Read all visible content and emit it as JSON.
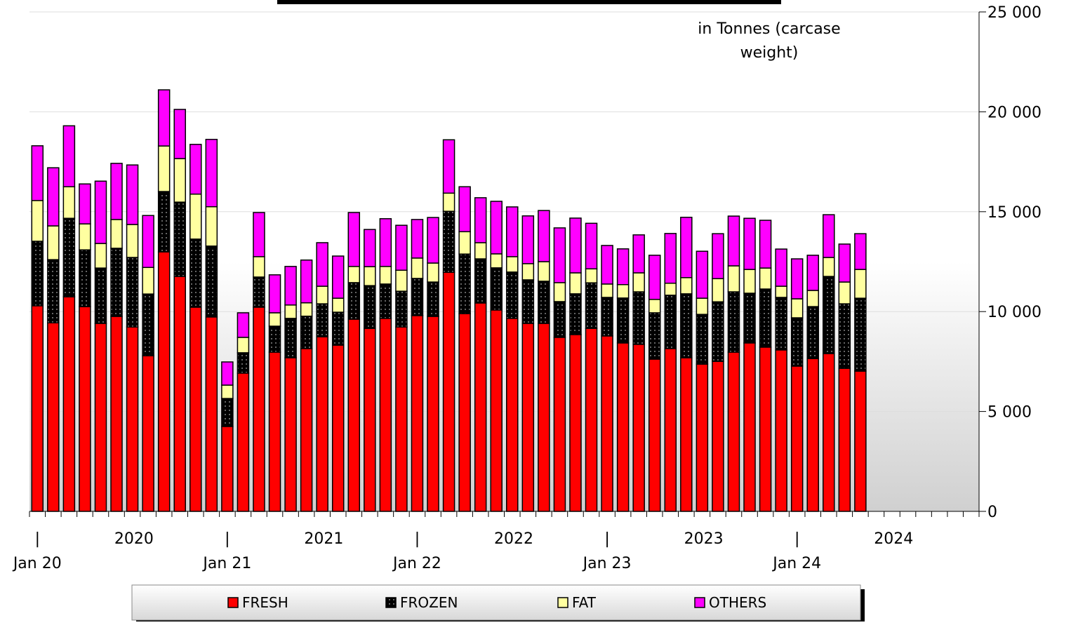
{
  "chart_data": {
    "type": "stacked-bar",
    "annotation": [
      "in Tonnes (carcase",
      "weight)"
    ],
    "categories": [
      "Jan 20",
      null,
      null,
      null,
      null,
      null,
      null,
      null,
      null,
      null,
      null,
      null,
      "Jan 21",
      null,
      null,
      null,
      null,
      null,
      null,
      null,
      null,
      null,
      null,
      null,
      "Jan 22",
      null,
      null,
      null,
      null,
      null,
      null,
      null,
      null,
      null,
      null,
      null,
      "Jan 23",
      null,
      null,
      null,
      null,
      null,
      null,
      null,
      null,
      null,
      null,
      null,
      "Jan 24",
      null,
      null,
      null,
      null
    ],
    "year_labels": [
      "2020",
      "2021",
      "2022",
      "2023",
      "2024"
    ],
    "series": [
      {
        "name": "FRESH",
        "color": "#ff0000",
        "values": [
          10290,
          9440,
          10740,
          10250,
          9410,
          9760,
          9230,
          7790,
          12990,
          11760,
          10220,
          9730,
          4250,
          6920,
          10220,
          7970,
          7690,
          8150,
          8740,
          8320,
          9620,
          9160,
          9660,
          9230,
          9800,
          9760,
          11970,
          9900,
          10430,
          10080,
          9660,
          9410,
          9410,
          8710,
          8850,
          9160,
          8780,
          8430,
          8360,
          7620,
          8150,
          7690,
          7370,
          7510,
          7970,
          8430,
          8220,
          8080,
          7270,
          7650,
          7900,
          7160,
          7020
        ]
      },
      {
        "name": "FROZEN",
        "color": "#000000",
        "values": [
          3230,
          3160,
          3930,
          2840,
          2770,
          3410,
          3480,
          3090,
          3020,
          3720,
          3410,
          3550,
          1400,
          1020,
          1510,
          1300,
          1970,
          1620,
          1650,
          1650,
          1830,
          2140,
          1720,
          1790,
          1860,
          1720,
          3050,
          2980,
          2210,
          2110,
          2320,
          2180,
          2110,
          1790,
          2040,
          2280,
          1930,
          2250,
          2630,
          2320,
          2670,
          3200,
          2490,
          2980,
          3020,
          2490,
          2910,
          2630,
          2420,
          2600,
          3860,
          3230,
          3650
        ]
      },
      {
        "name": "FAT",
        "color": "#ffffa0",
        "values": [
          2040,
          1690,
          1580,
          1300,
          1230,
          1440,
          1650,
          1330,
          2280,
          2180,
          2250,
          1970,
          670,
          770,
          1020,
          670,
          670,
          670,
          880,
          700,
          810,
          950,
          880,
          1050,
          1020,
          950,
          910,
          1120,
          810,
          700,
          770,
          810,
          980,
          950,
          1050,
          700,
          670,
          670,
          950,
          670,
          600,
          810,
          810,
          1160,
          1300,
          1190,
          1050,
          560,
          950,
          810,
          950,
          1090,
          1440
        ]
      },
      {
        "name": "OTHERS",
        "color": "#ff00ff",
        "values": [
          2740,
          2910,
          3050,
          2000,
          3120,
          2810,
          2980,
          2600,
          2810,
          2460,
          2490,
          3370,
          1160,
          1230,
          2210,
          1900,
          1930,
          2140,
          2180,
          2110,
          2700,
          1860,
          2390,
          2250,
          1930,
          2280,
          2670,
          2250,
          2250,
          2630,
          2490,
          2390,
          2560,
          2740,
          2740,
          2280,
          1930,
          1790,
          1900,
          2210,
          2490,
          3020,
          2350,
          2250,
          2490,
          2560,
          2390,
          1860,
          2000,
          1760,
          2140,
          1900,
          1790
        ]
      }
    ],
    "ylim": [
      0,
      25000
    ],
    "yticks": [
      0,
      {
        "value": 5000,
        "label": "5 000"
      },
      {
        "value": 10000,
        "label": "10 000"
      },
      {
        "value": 15000,
        "label": "15 000"
      },
      {
        "value": 20000,
        "label": "20 000"
      },
      {
        "value": 25000,
        "label": "25 000"
      }
    ],
    "grid": true
  }
}
